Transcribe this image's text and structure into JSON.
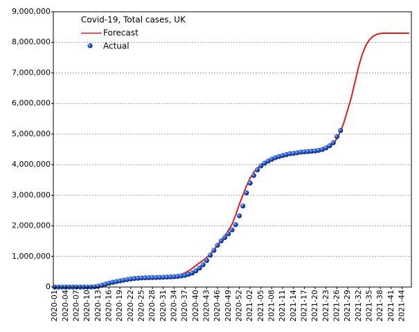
{
  "chart_data": {
    "type": "line",
    "title": "Covid-19, Total cases, UK",
    "categories": [
      "2020-01",
      null,
      null,
      "2020-04",
      null,
      null,
      "2020-07",
      null,
      null,
      "2020-10",
      null,
      null,
      "2020-13",
      null,
      null,
      "2020-16",
      null,
      null,
      "2020-19",
      null,
      null,
      "2020-22",
      null,
      null,
      "2020-25",
      null,
      null,
      "2020-28",
      null,
      null,
      "2020-31",
      null,
      null,
      "2020-34",
      null,
      null,
      "2020-37",
      null,
      null,
      "2020-40",
      null,
      null,
      "2020-43",
      null,
      null,
      "2020-46",
      null,
      null,
      "2020-49",
      null,
      null,
      "2020-52",
      null,
      null,
      "2021-02",
      null,
      null,
      "2021-05",
      null,
      null,
      "2021-08",
      null,
      null,
      "2021-11",
      null,
      null,
      "2021-14",
      null,
      null,
      "2021-17",
      null,
      null,
      "2021-20",
      null,
      null,
      "2021-23",
      null,
      null,
      "2021-26",
      null,
      null,
      "2021-29",
      null,
      null,
      "2021-32",
      null,
      null,
      "2021-35",
      null,
      null,
      "2021-38",
      null,
      null,
      "2021-41",
      null,
      null,
      "2021-44",
      null,
      null
    ],
    "series": [
      {
        "name": "Forecast",
        "color": "#e41a1c",
        "style": "line",
        "values": [
          0,
          0,
          0,
          0,
          0,
          0,
          0,
          0,
          0,
          1000,
          5000,
          15000,
          35000,
          65000,
          95000,
          125000,
          155000,
          180000,
          200000,
          220000,
          238000,
          252000,
          262000,
          270000,
          275000,
          280000,
          284000,
          288000,
          292000,
          297000,
          303000,
          312000,
          325000,
          345000,
          375000,
          415000,
          465000,
          530000,
          610000,
          700000,
          790000,
          870000,
          960000,
          1080000,
          1220000,
          1370000,
          1520000,
          1670000,
          1850000,
          2050000,
          2350000,
          2700000,
          3000000,
          3300000,
          3560000,
          3750000,
          3890000,
          3990000,
          4070000,
          4130000,
          4180000,
          4220000,
          4260000,
          4290000,
          4320000,
          4340000,
          4360000,
          4380000,
          4400000,
          4410000,
          4420000,
          4430000,
          4440000,
          4460000,
          4490000,
          4540000,
          4610000,
          4700000,
          4850000,
          5080000,
          5400000,
          5800000,
          6200000,
          6700000,
          7200000,
          7600000,
          7900000,
          8080000,
          8200000,
          8260000,
          8290000,
          8300000,
          8300000,
          8300000,
          8300000,
          8300000,
          8300000,
          8300000,
          8300000
        ]
      },
      {
        "name": "Actual",
        "color": "#1f4fbf",
        "style": "dots",
        "values": [
          0,
          0,
          0,
          0,
          0,
          0,
          0,
          0,
          0,
          300,
          3000,
          10000,
          30000,
          60000,
          95000,
          125000,
          155000,
          180000,
          200000,
          225000,
          245000,
          265000,
          280000,
          290000,
          298000,
          303000,
          306000,
          309000,
          312000,
          316000,
          321000,
          327000,
          333000,
          340000,
          350000,
          365000,
          385000,
          420000,
          460000,
          530000,
          620000,
          730000,
          870000,
          1040000,
          1200000,
          1370000,
          1510000,
          1620000,
          1740000,
          1870000,
          2040000,
          2330000,
          2650000,
          3080000,
          3400000,
          3650000,
          3830000,
          3960000,
          4050000,
          4120000,
          4180000,
          4230000,
          4270000,
          4300000,
          4330000,
          4360000,
          4370000,
          4390000,
          4410000,
          4420000,
          4430000,
          4440000,
          4450000,
          4470000,
          4500000,
          4550000,
          4620000,
          4720000,
          4920000,
          5120000,
          null,
          null,
          null,
          null,
          null,
          null,
          null,
          null,
          null,
          null,
          null,
          null,
          null,
          null,
          null,
          null,
          null,
          null,
          null
        ]
      }
    ],
    "ylim": [
      0,
      9000000
    ],
    "yticks": [
      {
        "value": 0,
        "label": "0"
      },
      {
        "value": 1000000,
        "label": "1,000,000"
      },
      {
        "value": 2000000,
        "label": "2,000,000"
      },
      {
        "value": 3000000,
        "label": "3,000,000"
      },
      {
        "value": 4000000,
        "label": "4,000,000"
      },
      {
        "value": 5000000,
        "label": "5,000,000"
      },
      {
        "value": 6000000,
        "label": "6,000,000"
      },
      {
        "value": 7000000,
        "label": "7,000,000"
      },
      {
        "value": 8000000,
        "label": "8,000,000"
      },
      {
        "value": 9000000,
        "label": "9,000,000"
      }
    ],
    "grid": true
  }
}
